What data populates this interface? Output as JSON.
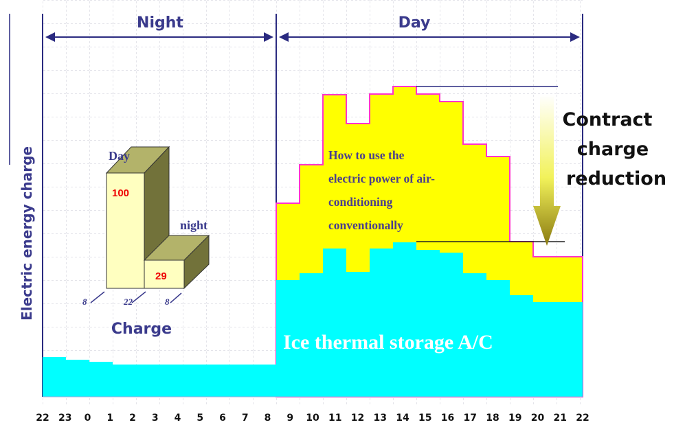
{
  "header": {
    "night_label": "Night",
    "day_label": "Day"
  },
  "y_axis_label": "Electric energy charge",
  "x_ticks": [
    "22",
    "23",
    "0",
    "1",
    "2",
    "3",
    "4",
    "5",
    "6",
    "7",
    "8",
    "9",
    "10",
    "11",
    "12",
    "13",
    "14",
    "15",
    "16",
    "17",
    "18",
    "19",
    "20",
    "21",
    "22"
  ],
  "annotations": {
    "conventional_note": [
      "How to use the",
      "electric power of air-",
      "conditioning",
      "conventionally"
    ],
    "reduction_label": [
      "Contract",
      "charge",
      "reduction"
    ],
    "ice_storage_label": "Ice thermal storage A/C"
  },
  "inset": {
    "title": "Charge",
    "day_label": "Day",
    "night_label": "night",
    "day_value": "100",
    "night_value": "29",
    "hour_labels": [
      "8",
      "22",
      "8"
    ]
  },
  "colors": {
    "conventional_fill": "#ffff00",
    "conventional_outline": "#ff33cc",
    "ice_fill": "#00ffff",
    "header_text": "#3a3a8c",
    "value_text": "#ee0000",
    "note_text": "#4b3f8c"
  }
}
